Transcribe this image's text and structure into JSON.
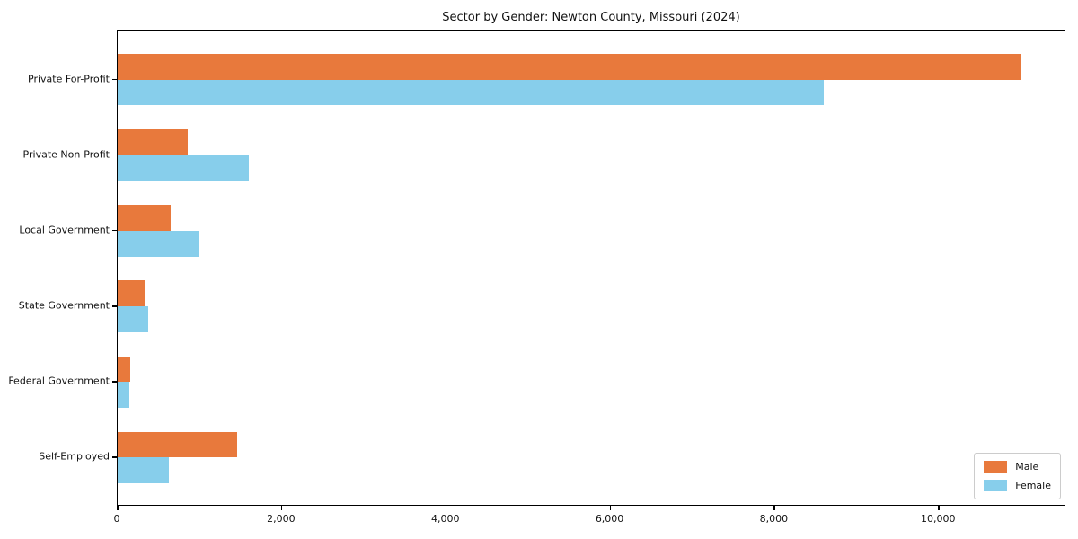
{
  "chart_data": {
    "type": "bar",
    "orientation": "horizontal",
    "title": "Sector by Gender: Newton County, Missouri (2024)",
    "xlabel": "",
    "ylabel": "",
    "categories": [
      "Private For-Profit",
      "Private Non-Profit",
      "Local Government",
      "State Government",
      "Federal Government",
      "Self-Employed"
    ],
    "series": [
      {
        "name": "Male",
        "color": "#e8793c",
        "values": [
          11000,
          850,
          645,
          330,
          150,
          1450
        ]
      },
      {
        "name": "Female",
        "color": "#87ceeb",
        "values": [
          8600,
          1600,
          990,
          370,
          140,
          620
        ]
      }
    ],
    "xlim": [
      0,
      11550
    ],
    "xticks": [
      0,
      2000,
      4000,
      6000,
      8000,
      10000
    ],
    "xtick_labels": [
      "0",
      "2,000",
      "4,000",
      "6,000",
      "8,000",
      "10,000"
    ],
    "grid": false,
    "legend_position": "lower right"
  }
}
